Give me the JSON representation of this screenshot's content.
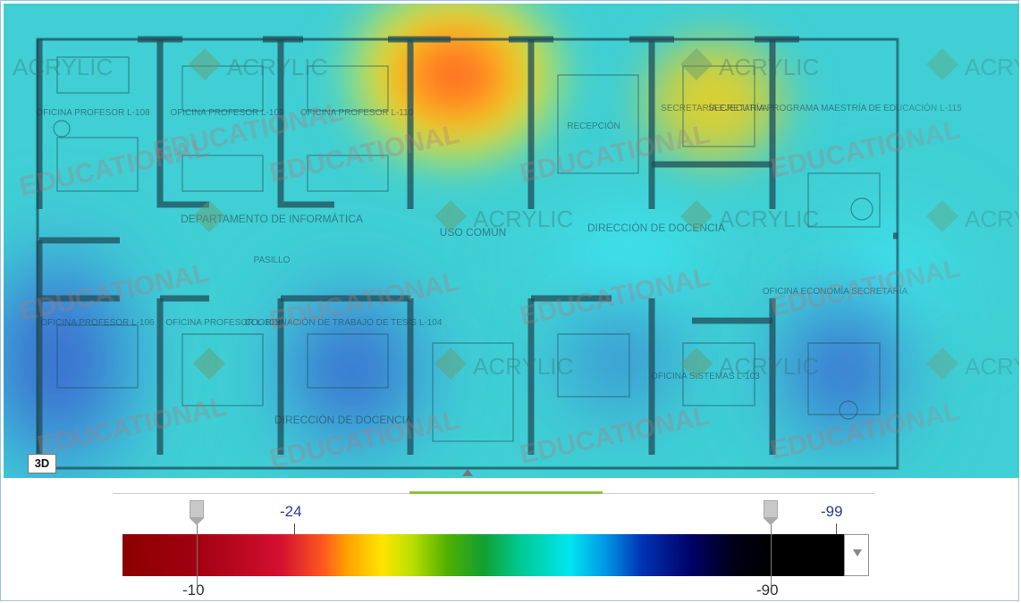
{
  "map": {
    "badge": "3D",
    "watermark_brand": "ACRYLIC",
    "watermark_edition": "EDUCATIONAL",
    "rooms": [
      "OFICINA PROFESOR L-108",
      "OFICINA PROFESOR L-109",
      "OFICINA PROFESOR L-110",
      "RECEPCIÓN",
      "SECRETARÍA EJECUTIVA",
      "SECRETARÍA PROGRAMA MAESTRÍA DE EDUCACIÓN L-115",
      "DEPARTAMENTO DE INFORMÁTICA",
      "PASILLO",
      "USO COMÚN",
      "DIRECCIÓN DE DOCENCIA",
      "OFICINA PROFESOR L-106",
      "OFICINA PROFESOR L-105",
      "COORDINACIÓN DE TRABAJO DE TESIS L-104",
      "DIRECCIÓN DE DOCENCIA",
      "OFICINA SISTEMAS L-103",
      "OFICINA ECONOMÍA SECRETARÍA"
    ]
  },
  "scale": {
    "top_labels": [
      "-24",
      "-99"
    ],
    "bottom_labels": [
      "-10",
      "-90"
    ],
    "min_threshold": -10,
    "max_threshold": -90,
    "range_min": -10,
    "range_max": -99,
    "colors": [
      "#8b0000",
      "#d41030",
      "#ffa000",
      "#ffe400",
      "#10a030",
      "#00e6f0",
      "#0032b4",
      "#000064",
      "#000000"
    ]
  },
  "icons": {
    "collapse": "triangle-up-icon",
    "dropdown": "triangle-down-icon",
    "thumb": "slider-thumb-icon"
  }
}
